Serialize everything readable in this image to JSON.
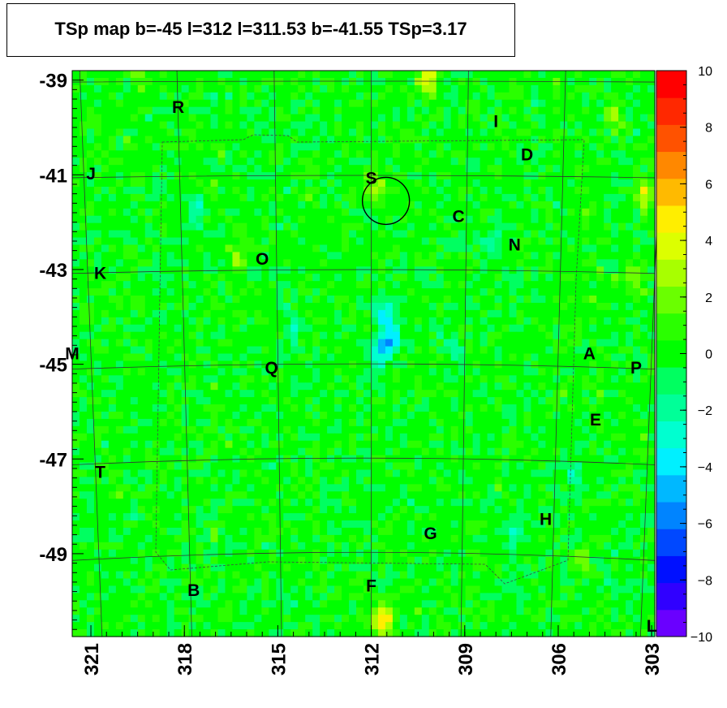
{
  "title": "TSp map b=-45 l=312 l=311.53 b=-41.55 TSp=3.17",
  "chart_data": {
    "type": "heatmap",
    "title": "TSp map b=-45 l=312 l=311.53 b=-41.55 TSp=3.17",
    "x_axis": {
      "reversed": true,
      "range": [
        302.9,
        321.6
      ],
      "tick_labels": [
        "321",
        "318",
        "315",
        "312",
        "309",
        "306",
        "303"
      ],
      "tick_values": [
        321,
        318,
        315,
        312,
        309,
        306,
        303
      ]
    },
    "y_axis": {
      "range": [
        -50.75,
        -38.8
      ],
      "tick_labels": [
        "-39",
        "-41",
        "-43",
        "-45",
        "-47",
        "-49"
      ],
      "tick_values": [
        -39,
        -41,
        -43,
        -45,
        -47,
        -49
      ]
    },
    "color_scale": {
      "range": [
        -10,
        10
      ],
      "tick_labels": [
        "10",
        "8",
        "6",
        "4",
        "2",
        "0",
        "−2",
        "−4",
        "−6",
        "−8",
        "−10"
      ],
      "tick_values": [
        10,
        8,
        6,
        4,
        2,
        0,
        -2,
        -4,
        -6,
        -8,
        -10
      ],
      "colors": [
        "#6a00ff",
        "#3000ff",
        "#0010ff",
        "#0048ff",
        "#0084ff",
        "#00b8ff",
        "#00f0ff",
        "#00ffd0",
        "#00ff98",
        "#00ff60",
        "#00ff00",
        "#2aff00",
        "#6aff00",
        "#a8ff00",
        "#dcff00",
        "#ffee00",
        "#ffba00",
        "#ff8800",
        "#ff5200",
        "#ff2800",
        "#ff0000"
      ]
    },
    "highlight": {
      "l": 311.53,
      "b": -41.55,
      "TSp": 3.17
    },
    "hotspots": [
      {
        "l": 311.6,
        "b": -50.4,
        "value": 5.5
      },
      {
        "l": 310.2,
        "b": -39.0,
        "value": 4.5
      },
      {
        "l": 303.2,
        "b": -41.4,
        "value": 4.0
      },
      {
        "l": 304.2,
        "b": -39.8,
        "value": 3.0
      },
      {
        "l": 311.9,
        "b": -41.3,
        "value": 3.0
      },
      {
        "l": 316.3,
        "b": -42.8,
        "value": 2.5
      },
      {
        "l": 305.2,
        "b": -49.2,
        "value": 2.5
      },
      {
        "l": 319.5,
        "b": -38.9,
        "value": 2.5
      },
      {
        "l": 303.6,
        "b": -43.2,
        "value": 2.5
      }
    ],
    "coldspots": [
      {
        "l": 311.4,
        "b": -44.5,
        "value": -5.0
      },
      {
        "l": 311.8,
        "b": -44.7,
        "value": -3.5
      },
      {
        "l": 311.6,
        "b": -43.9,
        "value": -4.0
      },
      {
        "l": 309.4,
        "b": -44.7,
        "value": -2.5
      },
      {
        "l": 305.5,
        "b": -47.3,
        "value": -2.0
      },
      {
        "l": 307.4,
        "b": -48.6,
        "value": -2.5
      },
      {
        "l": 308.2,
        "b": -42.4,
        "value": -2.0
      },
      {
        "l": 317.6,
        "b": -41.8,
        "value": -2.0
      },
      {
        "l": 314.5,
        "b": -44.2,
        "value": -2.0
      }
    ],
    "sources": [
      {
        "label": "R",
        "l": 318.2,
        "b": -39.6
      },
      {
        "label": "I",
        "l": 308.0,
        "b": -39.9
      },
      {
        "label": "D",
        "l": 307.0,
        "b": -40.6
      },
      {
        "label": "J",
        "l": 321.0,
        "b": -41.0
      },
      {
        "label": "S",
        "l": 312.0,
        "b": -41.1
      },
      {
        "label": "C",
        "l": 309.2,
        "b": -41.9
      },
      {
        "label": "N",
        "l": 307.4,
        "b": -42.5
      },
      {
        "label": "O",
        "l": 315.5,
        "b": -42.8
      },
      {
        "label": "K",
        "l": 320.7,
        "b": -43.1
      },
      {
        "label": "M",
        "l": 321.6,
        "b": -44.8
      },
      {
        "label": "A",
        "l": 305.0,
        "b": -44.8
      },
      {
        "label": "Q",
        "l": 315.2,
        "b": -45.1
      },
      {
        "label": "P",
        "l": 303.5,
        "b": -45.1
      },
      {
        "label": "E",
        "l": 304.8,
        "b": -46.2
      },
      {
        "label": "T",
        "l": 320.7,
        "b": -47.3
      },
      {
        "label": "H",
        "l": 306.4,
        "b": -48.3
      },
      {
        "label": "G",
        "l": 310.1,
        "b": -48.6
      },
      {
        "label": "B",
        "l": 317.7,
        "b": -49.8
      },
      {
        "label": "F",
        "l": 312.0,
        "b": -49.7
      },
      {
        "label": "L",
        "l": 303.0,
        "b": -50.55
      }
    ]
  }
}
